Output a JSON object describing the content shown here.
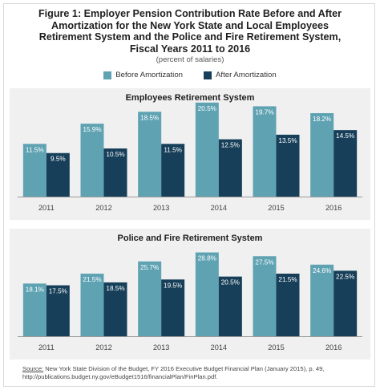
{
  "figure": {
    "title": "Figure 1: Employer Pension Contribution Rate Before and After\nAmortization for the New York State and Local Employees\nRetirement System and the Police and Fire Retirement System,\nFiscal Years 2011 to 2016",
    "subtitle": "(percent of salaries)",
    "legend": [
      {
        "label": "Before Amortization",
        "color": "#5fa3b3"
      },
      {
        "label": "After Amortization",
        "color": "#173f59"
      }
    ],
    "source_label": "Source:",
    "source_text": " New York State Division of the Budget, FY 2016 Executive Budget Financial Plan (January 2015), p. 49, http://publications.budget.ny.gov/eBudget1516/financialPlan/FinPlan.pdf."
  },
  "colors": {
    "before": "#5fa3b3",
    "after": "#173f59",
    "panel_bg": "#f0f0f0"
  },
  "chart_data": [
    {
      "type": "bar",
      "title": "Employees Retirement System",
      "categories": [
        "2011",
        "2012",
        "2013",
        "2014",
        "2015",
        "2016"
      ],
      "series": [
        {
          "name": "Before Amortization",
          "values": [
            11.5,
            15.9,
            18.5,
            20.5,
            19.7,
            18.2
          ],
          "labels": [
            "11.5%",
            "15.9%",
            "18.5%",
            "20.5%",
            "19.7%",
            "18.2%"
          ]
        },
        {
          "name": "After Amortization",
          "values": [
            9.5,
            10.5,
            11.5,
            12.5,
            13.5,
            14.5
          ],
          "labels": [
            "9.5%",
            "10.5%",
            "11.5%",
            "12.5%",
            "13.5%",
            "14.5%"
          ]
        }
      ],
      "ylim": [
        0,
        21
      ],
      "grid": false
    },
    {
      "type": "bar",
      "title": "Police and Fire Retirement System",
      "categories": [
        "2011",
        "2012",
        "2013",
        "2014",
        "2015",
        "2016"
      ],
      "series": [
        {
          "name": "Before Amortization",
          "values": [
            18.1,
            21.5,
            25.7,
            28.8,
            27.5,
            24.6
          ],
          "labels": [
            "18.1%",
            "21.5%",
            "25.7%",
            "28.8%",
            "27.5%",
            "24.6%"
          ]
        },
        {
          "name": "After Amortization",
          "values": [
            17.5,
            18.5,
            19.5,
            20.5,
            21.5,
            22.5
          ],
          "labels": [
            "17.5%",
            "18.5%",
            "19.5%",
            "20.5%",
            "21.5%",
            "22.5%"
          ]
        }
      ],
      "ylim": [
        0,
        29.5
      ],
      "grid": false
    }
  ]
}
